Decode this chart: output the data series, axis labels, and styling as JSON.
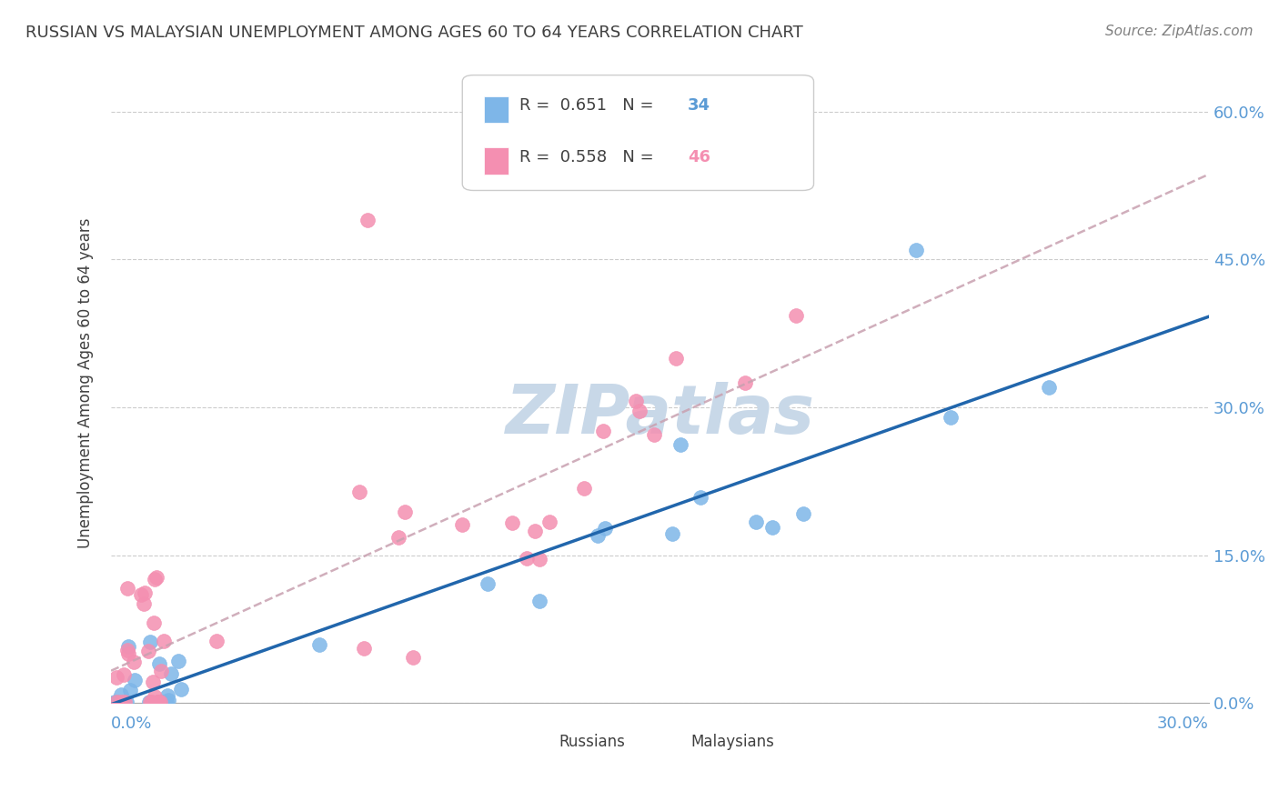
{
  "title": "RUSSIAN VS MALAYSIAN UNEMPLOYMENT AMONG AGES 60 TO 64 YEARS CORRELATION CHART",
  "source": "Source: ZipAtlas.com",
  "ylabel": "Unemployment Among Ages 60 to 64 years",
  "ytick_labels": [
    "0.0%",
    "15.0%",
    "30.0%",
    "45.0%",
    "60.0%"
  ],
  "ytick_values": [
    0.0,
    0.15,
    0.3,
    0.45,
    0.6
  ],
  "xrange": [
    0.0,
    0.3
  ],
  "yrange": [
    0.0,
    0.65
  ],
  "russian_R": 0.651,
  "russian_N": 34,
  "malaysian_R": 0.558,
  "malaysian_N": 46,
  "russian_color": "#7EB6E8",
  "malaysian_color": "#F48FB1",
  "russian_line_color": "#2166AC",
  "malaysian_line_color": "#C8A0B0",
  "grid_color": "#CCCCCC",
  "text_color": "#5B9BD5",
  "title_color": "#404040",
  "watermark_color": "#C8D8E8"
}
